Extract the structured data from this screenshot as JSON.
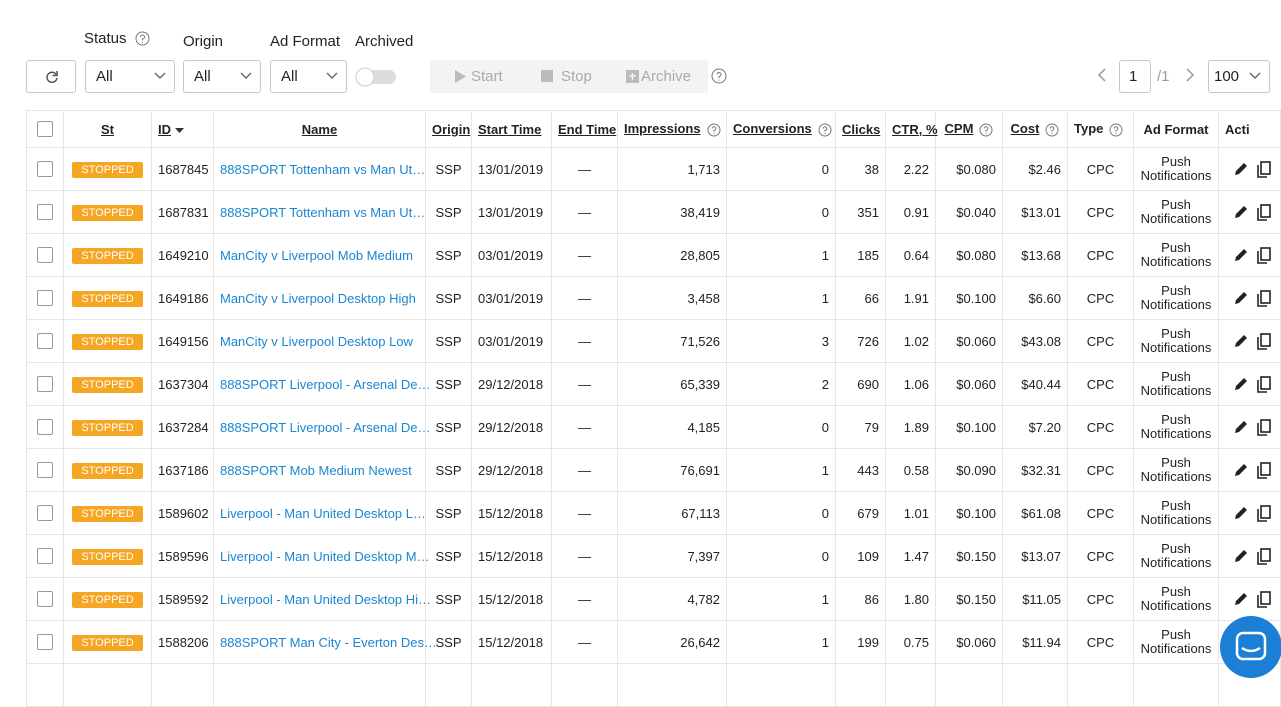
{
  "filters": [
    {
      "label": "Status",
      "value": "All"
    },
    {
      "label": "Origin",
      "value": "All"
    },
    {
      "label": "Ad Format",
      "value": "All"
    }
  ],
  "archived": "Archived",
  "buttons": [
    "Start",
    "Stop",
    "Archive"
  ],
  "pagination": {
    "page": "1",
    "total": "/1",
    "per_page": "100"
  },
  "table": {
    "columns": [
      "St",
      "ID",
      "Name",
      "Origin",
      "Start Time",
      "End Time",
      "Impressions",
      "Conversions",
      "Clicks",
      "CTR, %",
      "CPM",
      "Cost",
      "Type",
      "Ad Format",
      "Acti"
    ],
    "rows": [
      [
        "STOPPED",
        "1687845",
        "888SPORT Tottenham vs Man Ut…",
        "SSP",
        "13/01/2019",
        "—",
        "1,713",
        "0",
        "38",
        "2.22",
        "$0.080",
        "$2.46",
        "CPC",
        "Push Notifications"
      ],
      [
        "STOPPED",
        "1687831",
        "888SPORT Tottenham vs Man Ut…",
        "SSP",
        "13/01/2019",
        "—",
        "38,419",
        "0",
        "351",
        "0.91",
        "$0.040",
        "$13.01",
        "CPC",
        "Push Notifications"
      ],
      [
        "STOPPED",
        "1649210",
        "ManCity v Liverpool Mob Medium",
        "SSP",
        "03/01/2019",
        "—",
        "28,805",
        "1",
        "185",
        "0.64",
        "$0.080",
        "$13.68",
        "CPC",
        "Push Notifications"
      ],
      [
        "STOPPED",
        "1649186",
        "ManCity v Liverpool Desktop High",
        "SSP",
        "03/01/2019",
        "—",
        "3,458",
        "1",
        "66",
        "1.91",
        "$0.100",
        "$6.60",
        "CPC",
        "Push Notifications"
      ],
      [
        "STOPPED",
        "1649156",
        "ManCity v Liverpool Desktop Low",
        "SSP",
        "03/01/2019",
        "—",
        "71,526",
        "3",
        "726",
        "1.02",
        "$0.060",
        "$43.08",
        "CPC",
        "Push Notifications"
      ],
      [
        "STOPPED",
        "1637304",
        "888SPORT Liverpool - Arsenal De…",
        "SSP",
        "29/12/2018",
        "—",
        "65,339",
        "2",
        "690",
        "1.06",
        "$0.060",
        "$40.44",
        "CPC",
        "Push Notifications"
      ],
      [
        "STOPPED",
        "1637284",
        "888SPORT Liverpool - Arsenal De…",
        "SSP",
        "29/12/2018",
        "—",
        "4,185",
        "0",
        "79",
        "1.89",
        "$0.100",
        "$7.20",
        "CPC",
        "Push Notifications"
      ],
      [
        "STOPPED",
        "1637186",
        "888SPORT Mob Medium Newest",
        "SSP",
        "29/12/2018",
        "—",
        "76,691",
        "1",
        "443",
        "0.58",
        "$0.090",
        "$32.31",
        "CPC",
        "Push Notifications"
      ],
      [
        "STOPPED",
        "1589602",
        "Liverpool - Man United Desktop L…",
        "SSP",
        "15/12/2018",
        "—",
        "67,113",
        "0",
        "679",
        "1.01",
        "$0.100",
        "$61.08",
        "CPC",
        "Push Notifications"
      ],
      [
        "STOPPED",
        "1589596",
        "Liverpool - Man United Desktop M…",
        "SSP",
        "15/12/2018",
        "—",
        "7,397",
        "0",
        "109",
        "1.47",
        "$0.150",
        "$13.07",
        "CPC",
        "Push Notifications"
      ],
      [
        "STOPPED",
        "1589592",
        "Liverpool - Man United Desktop Hi…",
        "SSP",
        "15/12/2018",
        "—",
        "4,782",
        "1",
        "86",
        "1.80",
        "$0.150",
        "$11.05",
        "CPC",
        "Push Notifications"
      ],
      [
        "STOPPED",
        "1588206",
        "888SPORT Man City - Everton Des…",
        "SSP",
        "15/12/2018",
        "—",
        "26,642",
        "1",
        "199",
        "0.75",
        "$0.060",
        "$11.94",
        "CPC",
        "Push Notifications"
      ]
    ]
  }
}
